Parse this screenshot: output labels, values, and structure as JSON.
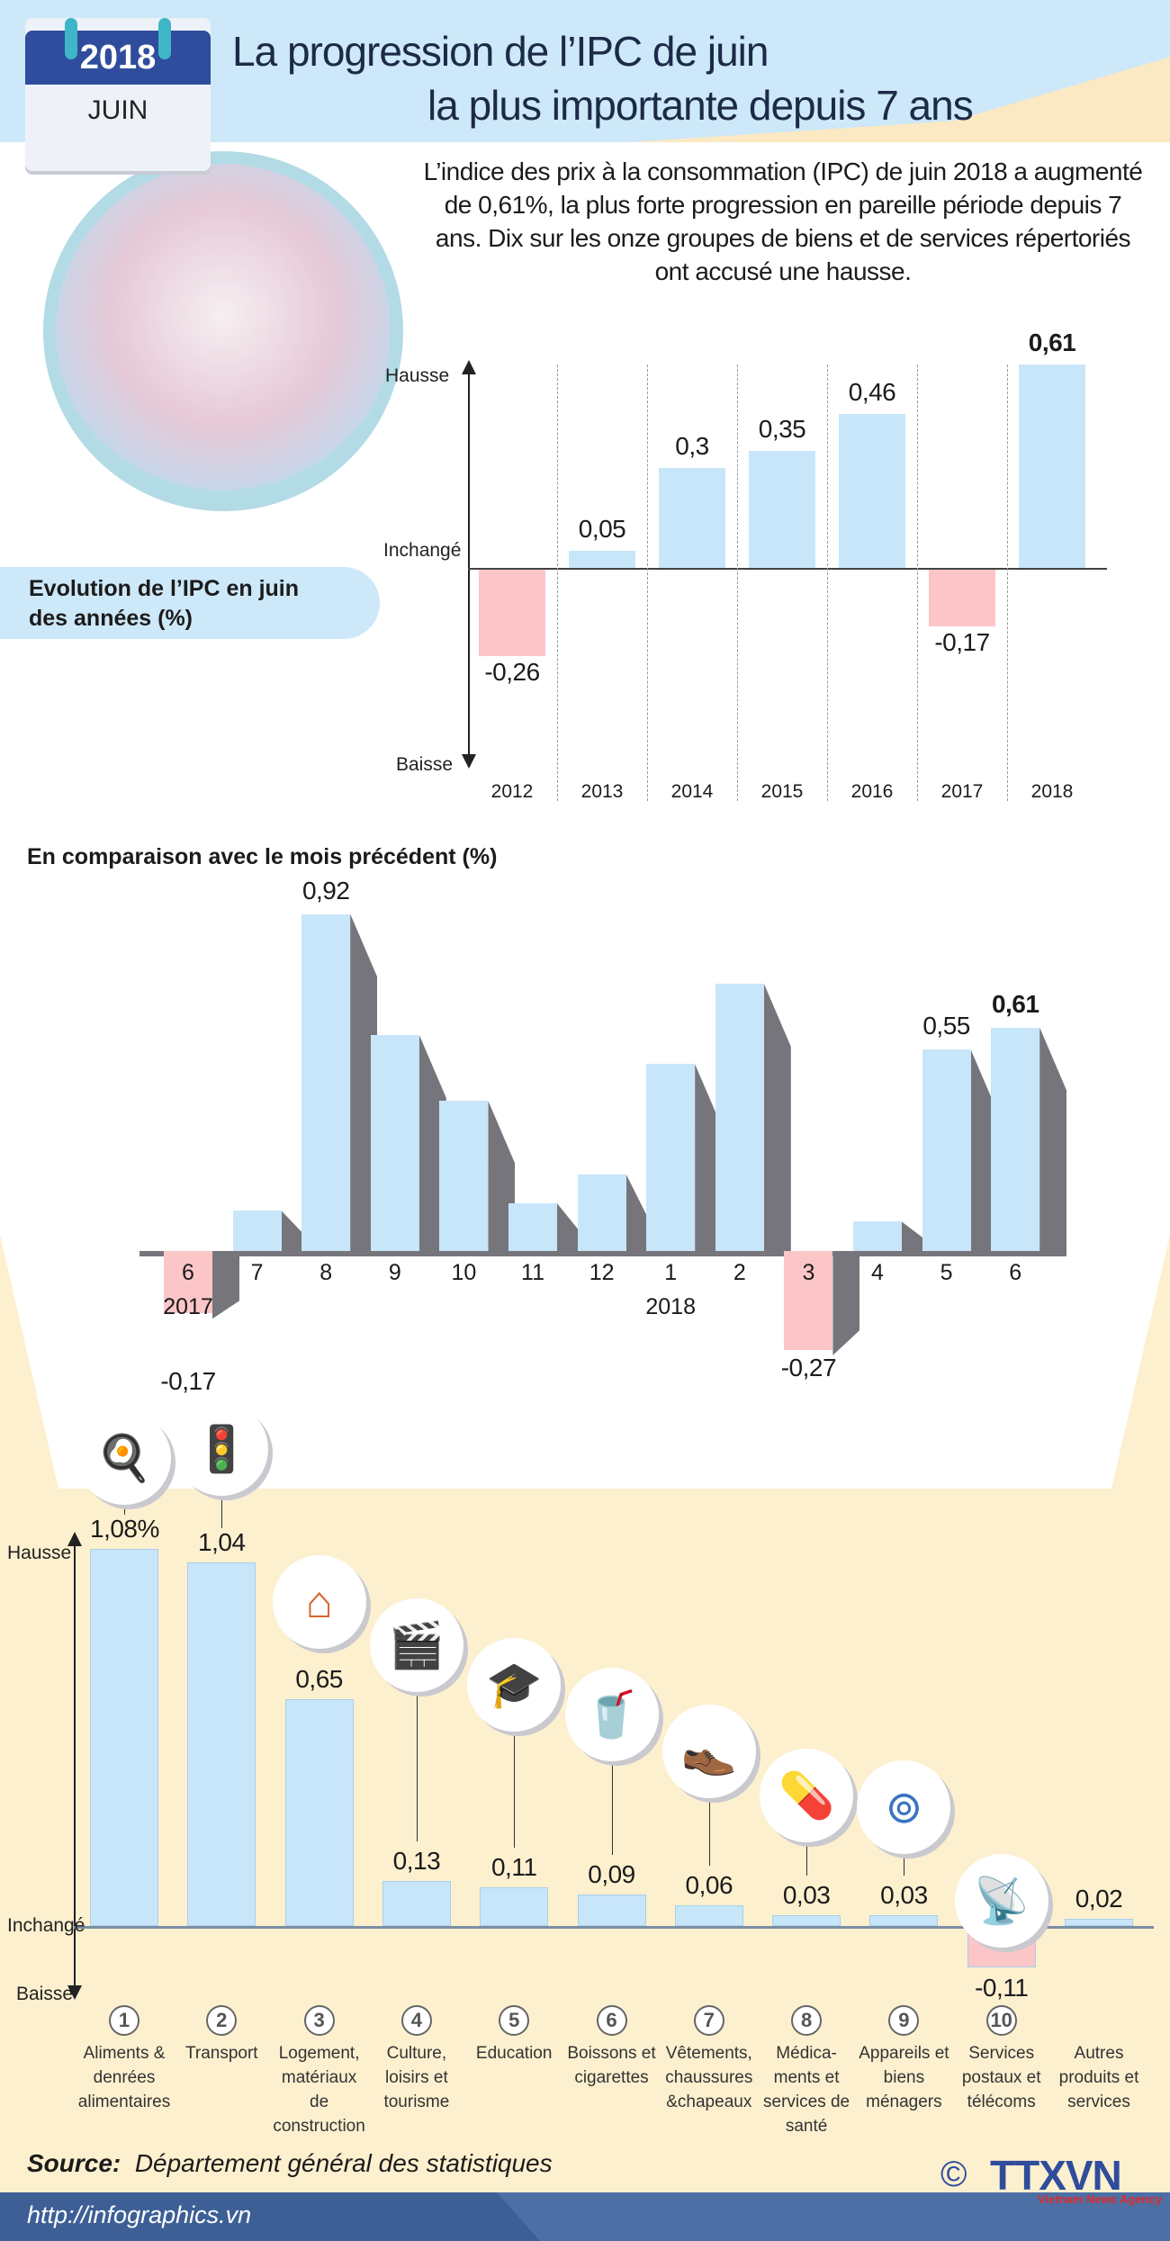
{
  "header": {
    "calendar_year": "2018",
    "calendar_month": "JUIN",
    "title_line1": "La progression de l’IPC de juin",
    "title_line2": "la plus importante depuis 7 ans"
  },
  "intro": "L’indice des prix à la consommation (IPC) de juin 2018 a augmenté de 0,61%, la plus forte progression en pareille période depuis 7 ans. Dix sur les onze groupes de biens et de services répertoriés ont accusé une hausse.",
  "colors": {
    "positive": "#c8e6fa",
    "negative": "#fcc6c8",
    "shadow": "#76757b",
    "header": "#cde8f8",
    "beige": "#fdf0cf",
    "footer": "#4c70a6",
    "logo_blue": "#2f4d9c",
    "logo_red": "#e02a2a"
  },
  "chart_data": [
    {
      "type": "bar",
      "title": "Evolution de l’IPC en juin des années (%)",
      "axis_labels": {
        "top": "Hausse",
        "zero": "Inchangé",
        "bottom": "Baisse"
      },
      "categories": [
        "2012",
        "2013",
        "2014",
        "2015",
        "2016",
        "2017",
        "2018"
      ],
      "values": [
        -0.26,
        0.05,
        0.3,
        0.35,
        0.46,
        -0.17,
        0.61
      ],
      "labels": [
        "-0,26",
        "0,05",
        "0,3",
        "0,35",
        "0,46",
        "-0,17",
        "0,61"
      ],
      "highlight": "2018",
      "grid": "vertical dashed separators"
    },
    {
      "type": "bar",
      "title": "En comparaison avec le mois précédent (%)",
      "categories": [
        "6",
        "7",
        "8",
        "9",
        "10",
        "11",
        "12",
        "1",
        "2",
        "3",
        "4",
        "5",
        "6"
      ],
      "year_labels": [
        {
          "text": "2017",
          "under": "6"
        },
        {
          "text": "2018",
          "under": "1"
        }
      ],
      "values": [
        -0.17,
        0.11,
        0.92,
        0.59,
        0.41,
        0.13,
        0.21,
        0.51,
        0.73,
        -0.27,
        0.08,
        0.55,
        0.61
      ],
      "labels": [
        "-0,17",
        "",
        "0,92",
        "",
        "",
        "",
        "",
        "",
        "",
        "-0,27",
        "",
        "0,55",
        "0,61"
      ],
      "style": "3d bars"
    },
    {
      "type": "bar",
      "axis_labels": {
        "top": "Hausse",
        "zero": "Inchangé",
        "bottom": "Baisse"
      },
      "categories": [
        "Aliments & denrées alimentaires",
        "Transport",
        "Logement, matériaux de construction",
        "Culture, loisirs et tourisme",
        "Education",
        "Boissons et cigarettes",
        "Vêtements, chaussures &chapeaux",
        "Médica-ments et services de santé",
        "Appareils et biens ménagers",
        "Services postaux et télécoms",
        "Autres produits et services"
      ],
      "numbers": [
        "1",
        "2",
        "3",
        "4",
        "5",
        "6",
        "7",
        "8",
        "9",
        "10",
        ""
      ],
      "values": [
        1.08,
        1.04,
        0.65,
        0.13,
        0.11,
        0.09,
        0.06,
        0.03,
        0.03,
        -0.11,
        0.02
      ],
      "labels": [
        "1,08%",
        "1,04",
        "0,65",
        "0,13",
        "0,11",
        "0,09",
        "0,06",
        "0,03",
        "0,03",
        "-0,11",
        "0,02"
      ],
      "icons": [
        "food-plate-icon",
        "traffic-light-icon",
        "house-icon",
        "clapperboard-icon",
        "graduation-cap-icon",
        "drink-cigarettes-icon",
        "clothes-shoes-icon",
        "pills-icon",
        "washing-machine-icon",
        "antenna-tower-icon",
        ""
      ]
    }
  ],
  "source": {
    "label": "Source:",
    "text": "Département général des statistiques"
  },
  "footer": {
    "url": "http://infographics.vn",
    "logo_text": "TTXVN",
    "logo_sub": "Vietnam News Agency",
    "copyright": "©"
  }
}
